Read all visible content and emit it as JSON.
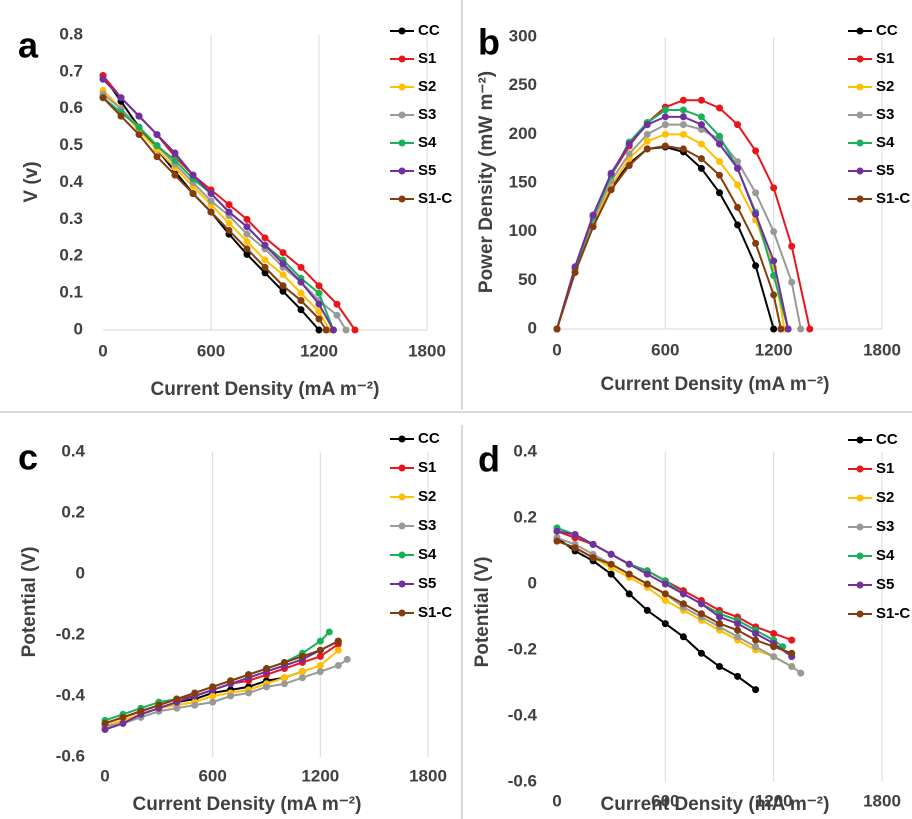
{
  "chart_data": [
    {
      "type": "line",
      "label": "a",
      "x_label": "Current Density (mA m⁻²)",
      "y_label": "V (v)",
      "xlim": [
        0,
        1800
      ],
      "xticks": [
        0,
        600,
        1200,
        1800
      ],
      "ylim": [
        0,
        0.8
      ],
      "yticks": [
        0,
        0.1,
        0.2,
        0.3,
        0.4,
        0.5,
        0.6,
        0.7,
        0.8
      ],
      "grid": "x",
      "series": [
        {
          "name": "CC",
          "color": "#000000",
          "x": [
            0,
            100,
            200,
            300,
            400,
            500,
            600,
            700,
            800,
            900,
            1000,
            1100,
            1200
          ],
          "values": [
            0.69,
            0.62,
            0.55,
            0.49,
            0.43,
            0.37,
            0.32,
            0.26,
            0.205,
            0.155,
            0.105,
            0.055,
            0
          ]
        },
        {
          "name": "S1",
          "color": "#e8161b",
          "x": [
            0,
            100,
            200,
            300,
            400,
            500,
            600,
            700,
            800,
            900,
            1000,
            1100,
            1200,
            1300,
            1400
          ],
          "values": [
            0.69,
            0.63,
            0.58,
            0.53,
            0.47,
            0.42,
            0.38,
            0.34,
            0.3,
            0.25,
            0.21,
            0.17,
            0.12,
            0.07,
            0
          ]
        },
        {
          "name": "S2",
          "color": "#ffc000",
          "x": [
            0,
            100,
            200,
            300,
            400,
            500,
            600,
            700,
            800,
            900,
            1000,
            1100,
            1200,
            1260
          ],
          "values": [
            0.65,
            0.6,
            0.54,
            0.49,
            0.44,
            0.39,
            0.34,
            0.29,
            0.24,
            0.19,
            0.15,
            0.1,
            0.05,
            0
          ]
        },
        {
          "name": "S3",
          "color": "#999999",
          "x": [
            0,
            100,
            200,
            300,
            400,
            500,
            600,
            700,
            800,
            900,
            1000,
            1100,
            1200,
            1300,
            1350
          ],
          "values": [
            0.64,
            0.6,
            0.55,
            0.5,
            0.45,
            0.4,
            0.35,
            0.31,
            0.26,
            0.22,
            0.17,
            0.13,
            0.08,
            0.04,
            0
          ]
        },
        {
          "name": "S4",
          "color": "#19b05a",
          "x": [
            0,
            100,
            200,
            300,
            400,
            500,
            600,
            700,
            800,
            900,
            1000,
            1100,
            1200,
            1280
          ],
          "values": [
            0.63,
            0.59,
            0.55,
            0.5,
            0.46,
            0.41,
            0.37,
            0.32,
            0.28,
            0.23,
            0.19,
            0.14,
            0.1,
            0
          ]
        },
        {
          "name": "S5",
          "color": "#7030a0",
          "x": [
            0,
            100,
            200,
            300,
            400,
            500,
            600,
            700,
            800,
            900,
            1000,
            1100,
            1200,
            1280
          ],
          "values": [
            0.68,
            0.63,
            0.58,
            0.53,
            0.48,
            0.42,
            0.37,
            0.32,
            0.28,
            0.23,
            0.18,
            0.13,
            0.07,
            0
          ]
        },
        {
          "name": "S1-C",
          "color": "#843c0c",
          "x": [
            0,
            100,
            200,
            300,
            400,
            500,
            600,
            700,
            800,
            900,
            1000,
            1100,
            1200,
            1240
          ],
          "values": [
            0.63,
            0.58,
            0.53,
            0.47,
            0.42,
            0.37,
            0.32,
            0.27,
            0.22,
            0.17,
            0.12,
            0.08,
            0.03,
            0
          ]
        }
      ]
    },
    {
      "type": "line",
      "label": "b",
      "x_label": "Current Density (mA m⁻²)",
      "y_label": "Power Density (mW m⁻²)",
      "xlim": [
        0,
        1800
      ],
      "xticks": [
        0,
        600,
        1200,
        1800
      ],
      "ylim": [
        0,
        300
      ],
      "yticks": [
        0,
        50,
        100,
        150,
        200,
        250,
        300
      ],
      "grid": "x",
      "series": [
        {
          "name": "CC",
          "color": "#000000",
          "x": [
            0,
            100,
            200,
            300,
            400,
            500,
            600,
            700,
            800,
            900,
            1000,
            1100,
            1200
          ],
          "values": [
            0,
            62,
            108,
            145,
            170,
            185,
            187,
            182,
            165,
            140,
            107,
            65,
            0
          ]
        },
        {
          "name": "S1",
          "color": "#e8161b",
          "x": [
            0,
            100,
            200,
            300,
            400,
            500,
            600,
            700,
            800,
            900,
            1000,
            1100,
            1200,
            1300,
            1400
          ],
          "values": [
            0,
            63,
            116,
            158,
            188,
            212,
            228,
            235,
            235,
            227,
            210,
            183,
            145,
            85,
            0
          ]
        },
        {
          "name": "S2",
          "color": "#ffc000",
          "x": [
            0,
            100,
            200,
            300,
            400,
            500,
            600,
            700,
            800,
            900,
            1000,
            1100,
            1200,
            1260
          ],
          "values": [
            0,
            60,
            108,
            147,
            175,
            193,
            200,
            200,
            190,
            172,
            148,
            112,
            63,
            0
          ]
        },
        {
          "name": "S3",
          "color": "#999999",
          "x": [
            0,
            100,
            200,
            300,
            400,
            500,
            600,
            700,
            800,
            900,
            1000,
            1100,
            1200,
            1300,
            1350
          ],
          "values": [
            0,
            62,
            112,
            152,
            180,
            200,
            210,
            210,
            205,
            195,
            172,
            140,
            100,
            48,
            0
          ]
        },
        {
          "name": "S4",
          "color": "#19b05a",
          "x": [
            0,
            100,
            200,
            300,
            400,
            500,
            600,
            700,
            800,
            900,
            1000,
            1100,
            1200,
            1280
          ],
          "values": [
            0,
            62,
            115,
            158,
            192,
            212,
            225,
            225,
            218,
            198,
            165,
            120,
            55,
            0
          ]
        },
        {
          "name": "S5",
          "color": "#7030a0",
          "x": [
            0,
            100,
            200,
            300,
            400,
            500,
            600,
            700,
            800,
            900,
            1000,
            1100,
            1200,
            1280
          ],
          "values": [
            0,
            64,
            117,
            160,
            190,
            210,
            218,
            218,
            210,
            190,
            165,
            118,
            70,
            0
          ]
        },
        {
          "name": "S1-C",
          "color": "#843c0c",
          "x": [
            0,
            100,
            200,
            300,
            400,
            500,
            600,
            700,
            800,
            900,
            1000,
            1100,
            1200,
            1240
          ],
          "values": [
            0,
            58,
            105,
            143,
            168,
            185,
            188,
            185,
            175,
            158,
            125,
            88,
            35,
            0
          ]
        }
      ]
    },
    {
      "type": "line",
      "label": "c",
      "x_label": "Current Density (mA m⁻²)",
      "y_label": "Potential (V)",
      "xlim": [
        0,
        1800
      ],
      "xticks": [
        0,
        600,
        1200,
        1800
      ],
      "ylim": [
        -0.6,
        0.4
      ],
      "yticks": [
        -0.6,
        -0.4,
        -0.2,
        0,
        0.2,
        0.4
      ],
      "grid": "x",
      "series": [
        {
          "name": "CC",
          "color": "#000000",
          "x": [
            0,
            100,
            200,
            300,
            400,
            500,
            600,
            700,
            800,
            900,
            1000,
            1100
          ],
          "values": [
            -0.5,
            -0.48,
            -0.46,
            -0.44,
            -0.42,
            -0.41,
            -0.39,
            -0.38,
            -0.37,
            -0.35,
            -0.34,
            -0.32
          ]
        },
        {
          "name": "S1",
          "color": "#e8161b",
          "x": [
            0,
            100,
            200,
            300,
            400,
            500,
            600,
            700,
            800,
            900,
            1000,
            1100,
            1200,
            1300
          ],
          "values": [
            -0.49,
            -0.47,
            -0.45,
            -0.43,
            -0.41,
            -0.4,
            -0.38,
            -0.36,
            -0.35,
            -0.33,
            -0.31,
            -0.29,
            -0.27,
            -0.23
          ]
        },
        {
          "name": "S2",
          "color": "#ffc000",
          "x": [
            0,
            100,
            200,
            300,
            400,
            500,
            600,
            700,
            800,
            900,
            1000,
            1100,
            1200,
            1300
          ],
          "values": [
            -0.5,
            -0.48,
            -0.46,
            -0.44,
            -0.43,
            -0.42,
            -0.4,
            -0.39,
            -0.38,
            -0.36,
            -0.34,
            -0.32,
            -0.3,
            -0.25
          ]
        },
        {
          "name": "S3",
          "color": "#999999",
          "x": [
            0,
            100,
            200,
            300,
            400,
            500,
            600,
            700,
            800,
            900,
            1000,
            1100,
            1200,
            1300,
            1350
          ],
          "values": [
            -0.5,
            -0.49,
            -0.47,
            -0.45,
            -0.44,
            -0.43,
            -0.42,
            -0.4,
            -0.39,
            -0.37,
            -0.36,
            -0.34,
            -0.32,
            -0.3,
            -0.28
          ]
        },
        {
          "name": "S4",
          "color": "#19b05a",
          "x": [
            0,
            100,
            200,
            300,
            400,
            500,
            600,
            700,
            800,
            900,
            1000,
            1100,
            1200,
            1250
          ],
          "values": [
            -0.48,
            -0.46,
            -0.44,
            -0.42,
            -0.41,
            -0.39,
            -0.37,
            -0.35,
            -0.33,
            -0.31,
            -0.29,
            -0.26,
            -0.22,
            -0.19
          ]
        },
        {
          "name": "S5",
          "color": "#7030a0",
          "x": [
            0,
            100,
            200,
            300,
            400,
            500,
            600,
            700,
            800,
            900,
            1000,
            1100,
            1200,
            1300
          ],
          "values": [
            -0.51,
            -0.49,
            -0.46,
            -0.44,
            -0.42,
            -0.4,
            -0.38,
            -0.36,
            -0.34,
            -0.32,
            -0.3,
            -0.28,
            -0.25,
            -0.22
          ]
        },
        {
          "name": "S1-C",
          "color": "#843c0c",
          "x": [
            0,
            100,
            200,
            300,
            400,
            500,
            600,
            700,
            800,
            900,
            1000,
            1100,
            1200,
            1300
          ],
          "values": [
            -0.49,
            -0.47,
            -0.45,
            -0.43,
            -0.41,
            -0.39,
            -0.37,
            -0.35,
            -0.33,
            -0.31,
            -0.29,
            -0.27,
            -0.25,
            -0.22
          ]
        }
      ]
    },
    {
      "type": "line",
      "label": "d",
      "x_label": "Current Density (mA m⁻²)",
      "y_label": "Potential (V)",
      "xlim": [
        0,
        1800
      ],
      "xticks": [
        0,
        600,
        1200,
        1800
      ],
      "ylim": [
        -0.6,
        0.4
      ],
      "yticks": [
        -0.6,
        -0.4,
        -0.2,
        0,
        0.2,
        0.4
      ],
      "grid": "x",
      "series": [
        {
          "name": "CC",
          "color": "#000000",
          "x": [
            0,
            100,
            200,
            300,
            400,
            500,
            600,
            700,
            800,
            900,
            1000,
            1100
          ],
          "values": [
            0.14,
            0.1,
            0.07,
            0.03,
            -0.03,
            -0.08,
            -0.12,
            -0.16,
            -0.21,
            -0.25,
            -0.28,
            -0.32
          ]
        },
        {
          "name": "S1",
          "color": "#e8161b",
          "x": [
            0,
            100,
            200,
            300,
            400,
            500,
            600,
            700,
            800,
            900,
            1000,
            1100,
            1200,
            1300
          ],
          "values": [
            0.16,
            0.14,
            0.12,
            0.09,
            0.06,
            0.04,
            0.01,
            -0.02,
            -0.05,
            -0.08,
            -0.1,
            -0.13,
            -0.15,
            -0.17
          ]
        },
        {
          "name": "S2",
          "color": "#ffc000",
          "x": [
            0,
            100,
            200,
            300,
            400,
            500,
            600,
            700,
            800,
            900,
            1000,
            1100,
            1200,
            1300
          ],
          "values": [
            0.13,
            0.11,
            0.08,
            0.05,
            0.02,
            -0.01,
            -0.05,
            -0.08,
            -0.11,
            -0.14,
            -0.17,
            -0.2,
            -0.22,
            -0.25
          ]
        },
        {
          "name": "S3",
          "color": "#999999",
          "x": [
            0,
            100,
            200,
            300,
            400,
            500,
            600,
            700,
            800,
            900,
            1000,
            1100,
            1200,
            1300,
            1350
          ],
          "values": [
            0.14,
            0.12,
            0.09,
            0.06,
            0.03,
            0,
            -0.03,
            -0.07,
            -0.1,
            -0.13,
            -0.16,
            -0.19,
            -0.22,
            -0.25,
            -0.27
          ]
        },
        {
          "name": "S4",
          "color": "#19b05a",
          "x": [
            0,
            100,
            200,
            300,
            400,
            500,
            600,
            700,
            800,
            900,
            1000,
            1100,
            1200,
            1250
          ],
          "values": [
            0.17,
            0.15,
            0.12,
            0.09,
            0.06,
            0.04,
            0.01,
            -0.03,
            -0.06,
            -0.09,
            -0.11,
            -0.14,
            -0.17,
            -0.19
          ]
        },
        {
          "name": "S5",
          "color": "#7030a0",
          "x": [
            0,
            100,
            200,
            300,
            400,
            500,
            600,
            700,
            800,
            900,
            1000,
            1100,
            1200,
            1300
          ],
          "values": [
            0.16,
            0.15,
            0.12,
            0.09,
            0.06,
            0.03,
            0,
            -0.03,
            -0.06,
            -0.1,
            -0.12,
            -0.15,
            -0.18,
            -0.22
          ]
        },
        {
          "name": "S1-C",
          "color": "#843c0c",
          "x": [
            0,
            100,
            200,
            300,
            400,
            500,
            600,
            700,
            800,
            900,
            1000,
            1100,
            1200,
            1300
          ],
          "values": [
            0.13,
            0.11,
            0.08,
            0.06,
            0.03,
            0,
            -0.03,
            -0.06,
            -0.09,
            -0.12,
            -0.14,
            -0.17,
            -0.19,
            -0.21
          ]
        }
      ]
    }
  ]
}
